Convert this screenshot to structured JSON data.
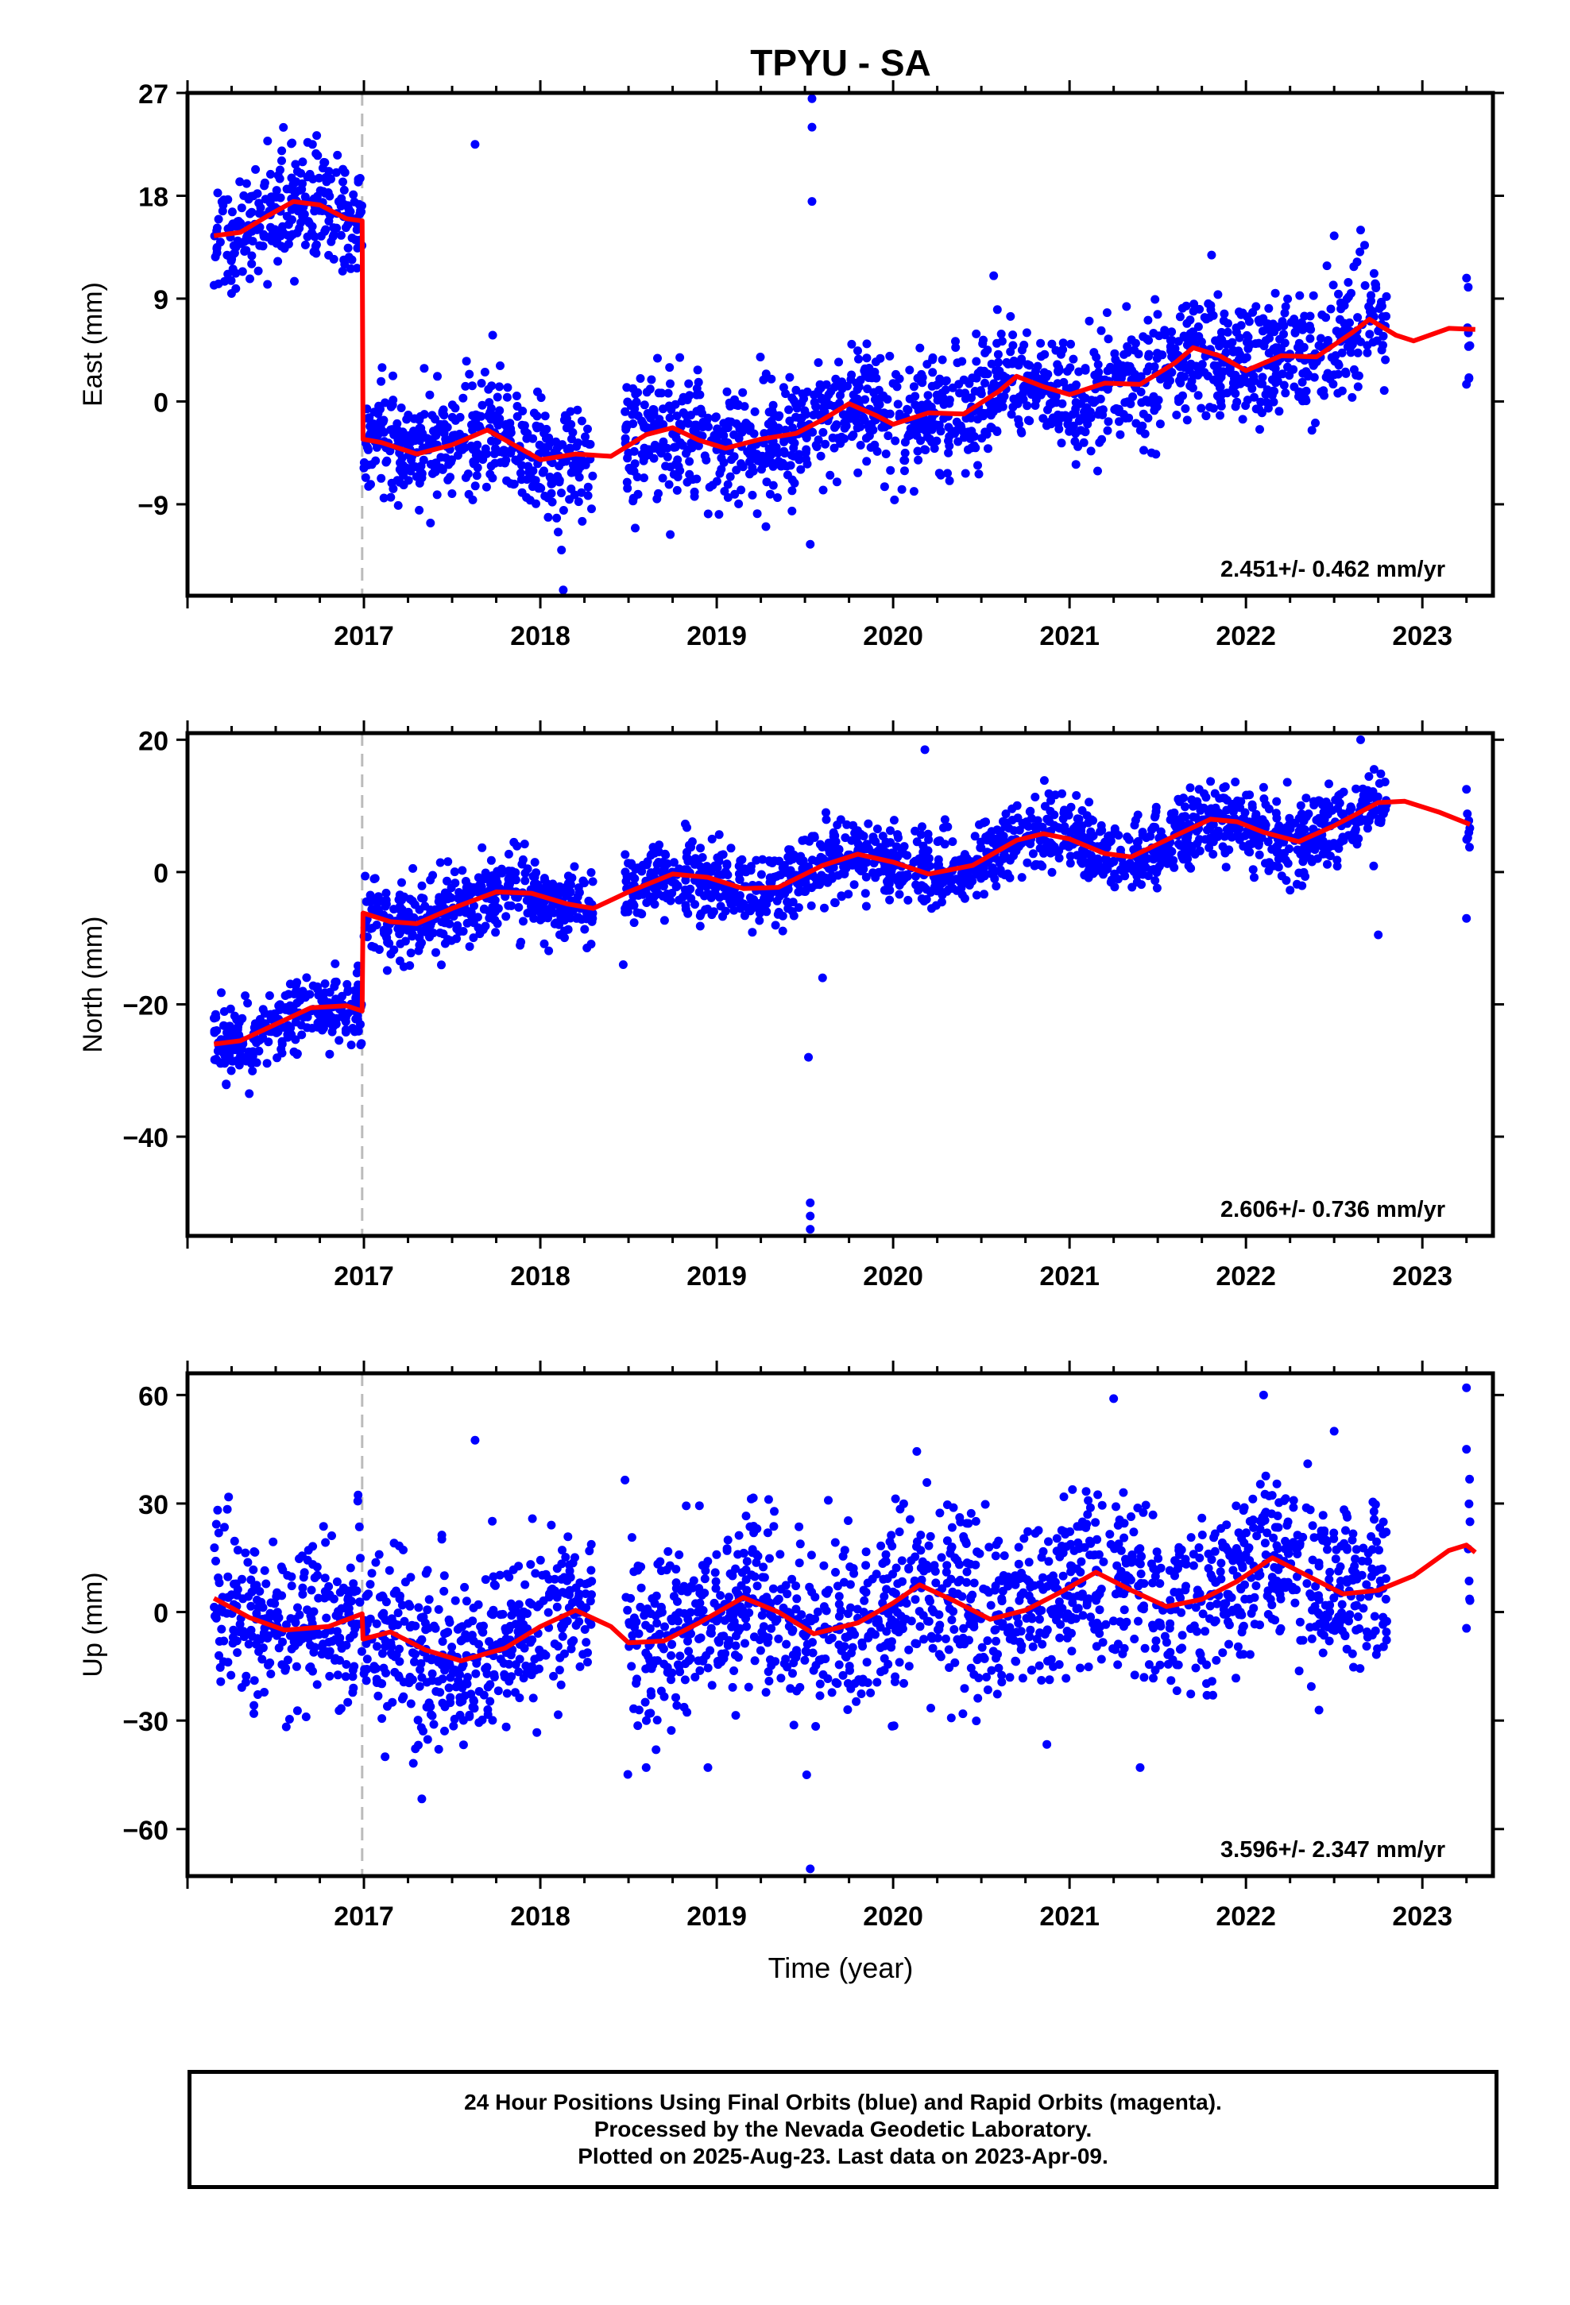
{
  "figure": {
    "title": "TPYU - SA",
    "xlabel": "Time (year)",
    "caption": [
      "24 Hour Positions Using Final Orbits (blue) and Rapid Orbits (magenta).",
      "Processed by the Nevada Geodetic Laboratory.",
      "Plotted on 2025-Aug-23. Last data on 2023-Apr-09."
    ],
    "colors": {
      "points": "#0000ff",
      "model": "#ff0000",
      "break_line": "#bbbbbb",
      "axes": "#000000"
    }
  },
  "chart_data": [
    {
      "type": "scatter",
      "panel": "east",
      "ylabel": "East (mm)",
      "xlim": [
        2016.0,
        2023.4
      ],
      "ylim": [
        -17,
        27
      ],
      "yticks": [
        27,
        18,
        9,
        0,
        -9
      ],
      "xticks": [
        2017,
        2018,
        2019,
        2020,
        2021,
        2022,
        2023
      ],
      "rate_label": "2.451+/- 0.462 mm/yr",
      "offset_epoch": 2016.99,
      "model_knots": [
        [
          2016.15,
          14.5
        ],
        [
          2016.3,
          14.8
        ],
        [
          2016.45,
          16.2
        ],
        [
          2016.6,
          17.5
        ],
        [
          2016.75,
          17.2
        ],
        [
          2016.9,
          16.0
        ],
        [
          2016.99,
          15.8
        ],
        [
          2016.995,
          -3.3
        ],
        [
          2017.1,
          -3.6
        ],
        [
          2017.3,
          -4.6
        ],
        [
          2017.5,
          -3.8
        ],
        [
          2017.7,
          -2.5
        ],
        [
          2017.85,
          -3.8
        ],
        [
          2018.0,
          -5.1
        ],
        [
          2018.2,
          -4.6
        ],
        [
          2018.4,
          -4.8
        ],
        [
          2018.6,
          -2.9
        ],
        [
          2018.75,
          -2.3
        ],
        [
          2018.9,
          -3.4
        ],
        [
          2019.05,
          -4.1
        ],
        [
          2019.25,
          -3.3
        ],
        [
          2019.45,
          -2.8
        ],
        [
          2019.6,
          -1.6
        ],
        [
          2019.75,
          -0.2
        ],
        [
          2019.9,
          -1.2
        ],
        [
          2020.0,
          -2.0
        ],
        [
          2020.2,
          -1.0
        ],
        [
          2020.4,
          -1.1
        ],
        [
          2020.6,
          0.9
        ],
        [
          2020.7,
          2.2
        ],
        [
          2020.85,
          1.3
        ],
        [
          2021.0,
          0.6
        ],
        [
          2021.2,
          1.6
        ],
        [
          2021.4,
          1.5
        ],
        [
          2021.6,
          3.4
        ],
        [
          2021.7,
          4.7
        ],
        [
          2021.85,
          4.0
        ],
        [
          2022.0,
          2.7
        ],
        [
          2022.2,
          4.0
        ],
        [
          2022.4,
          3.9
        ],
        [
          2022.6,
          6.0
        ],
        [
          2022.7,
          7.2
        ],
        [
          2022.85,
          5.8
        ],
        [
          2022.95,
          5.3
        ],
        [
          2023.15,
          6.4
        ],
        [
          2023.3,
          6.3
        ]
      ],
      "segments": [
        [
          2016.15,
          2016.99
        ],
        [
          2017.0,
          2018.3
        ],
        [
          2018.48,
          2019.75
        ],
        [
          2019.75,
          2020.45
        ],
        [
          2020.45,
          2022.8
        ],
        [
          2023.25,
          2023.27
        ]
      ],
      "noise_sd": 2.6,
      "outliers": [
        [
          2017.63,
          22.5
        ],
        [
          2019.54,
          26.5
        ],
        [
          2019.54,
          24.0
        ],
        [
          2019.54,
          17.5
        ],
        [
          2019.53,
          -12.5
        ],
        [
          2018.12,
          -13.0
        ],
        [
          2018.13,
          -16.5
        ],
        [
          2017.73,
          5.8
        ],
        [
          2020.57,
          11.0
        ],
        [
          2022.65,
          15.0
        ],
        [
          2022.5,
          14.5
        ],
        [
          2023.26,
          10.0
        ],
        [
          2023.25,
          1.5
        ]
      ]
    },
    {
      "type": "scatter",
      "panel": "north",
      "ylabel": "North (mm)",
      "xlim": [
        2016.0,
        2023.4
      ],
      "ylim": [
        -55,
        21
      ],
      "yticks": [
        20,
        0,
        -20,
        -40
      ],
      "xticks": [
        2017,
        2018,
        2019,
        2020,
        2021,
        2022,
        2023
      ],
      "rate_label": "2.606+/- 0.736 mm/yr",
      "offset_epoch": 2016.99,
      "model_knots": [
        [
          2016.15,
          -26.0
        ],
        [
          2016.3,
          -25.5
        ],
        [
          2016.5,
          -23.0
        ],
        [
          2016.7,
          -20.5
        ],
        [
          2016.9,
          -20.2
        ],
        [
          2016.99,
          -21.0
        ],
        [
          2016.995,
          -6.2
        ],
        [
          2017.15,
          -7.5
        ],
        [
          2017.3,
          -7.8
        ],
        [
          2017.5,
          -5.5
        ],
        [
          2017.75,
          -3.0
        ],
        [
          2017.95,
          -3.2
        ],
        [
          2018.15,
          -4.8
        ],
        [
          2018.3,
          -5.5
        ],
        [
          2018.5,
          -3.0
        ],
        [
          2018.75,
          -0.3
        ],
        [
          2018.95,
          -0.8
        ],
        [
          2019.15,
          -2.5
        ],
        [
          2019.35,
          -2.3
        ],
        [
          2019.6,
          1.0
        ],
        [
          2019.8,
          2.7
        ],
        [
          2020.0,
          1.5
        ],
        [
          2020.2,
          -0.3
        ],
        [
          2020.45,
          1.0
        ],
        [
          2020.7,
          4.8
        ],
        [
          2020.85,
          5.8
        ],
        [
          2021.0,
          5.0
        ],
        [
          2021.2,
          2.8
        ],
        [
          2021.35,
          2.3
        ],
        [
          2021.6,
          5.5
        ],
        [
          2021.8,
          8.0
        ],
        [
          2021.95,
          7.6
        ],
        [
          2022.1,
          6.0
        ],
        [
          2022.3,
          4.6
        ],
        [
          2022.5,
          7.0
        ],
        [
          2022.75,
          10.5
        ],
        [
          2022.9,
          10.7
        ],
        [
          2023.1,
          9.0
        ],
        [
          2023.27,
          7.2
        ]
      ],
      "segments": [
        [
          2016.15,
          2016.99
        ],
        [
          2017.0,
          2018.3
        ],
        [
          2018.48,
          2019.75
        ],
        [
          2019.75,
          2020.45
        ],
        [
          2020.45,
          2022.8
        ],
        [
          2023.25,
          2023.27
        ]
      ],
      "noise_sd": 2.8,
      "outliers": [
        [
          2019.52,
          -28.0
        ],
        [
          2019.53,
          -50.0
        ],
        [
          2019.53,
          -52.0
        ],
        [
          2019.53,
          -54.0
        ],
        [
          2018.47,
          -14.0
        ],
        [
          2016.35,
          -33.5
        ],
        [
          2022.65,
          20.0
        ],
        [
          2020.18,
          18.5
        ],
        [
          2022.75,
          -9.5
        ],
        [
          2023.25,
          12.5
        ],
        [
          2023.25,
          -7.0
        ],
        [
          2019.6,
          -16.0
        ],
        [
          2017.85,
          4.5
        ]
      ]
    },
    {
      "type": "scatter",
      "panel": "up",
      "ylabel": "Up (mm)",
      "xlim": [
        2016.0,
        2023.4
      ],
      "ylim": [
        -73,
        66
      ],
      "yticks": [
        60,
        30,
        0,
        -30,
        -60
      ],
      "xticks": [
        2017,
        2018,
        2019,
        2020,
        2021,
        2022,
        2023
      ],
      "rate_label": "3.596+/- 2.347 mm/yr",
      "offset_epoch": 2016.99,
      "model_knots": [
        [
          2016.15,
          3.8
        ],
        [
          2016.35,
          -1.5
        ],
        [
          2016.55,
          -5.0
        ],
        [
          2016.8,
          -4.0
        ],
        [
          2016.99,
          -0.5
        ],
        [
          2016.995,
          -7.5
        ],
        [
          2017.15,
          -5.5
        ],
        [
          2017.35,
          -10.5
        ],
        [
          2017.55,
          -13.5
        ],
        [
          2017.8,
          -10.0
        ],
        [
          2018.0,
          -4.0
        ],
        [
          2018.2,
          0.5
        ],
        [
          2018.4,
          -4.0
        ],
        [
          2018.5,
          -8.5
        ],
        [
          2018.7,
          -8.0
        ],
        [
          2018.9,
          -3.0
        ],
        [
          2019.15,
          4.0
        ],
        [
          2019.35,
          0.0
        ],
        [
          2019.55,
          -6.0
        ],
        [
          2019.8,
          -3.0
        ],
        [
          2020.0,
          2.5
        ],
        [
          2020.15,
          7.5
        ],
        [
          2020.35,
          3.0
        ],
        [
          2020.55,
          -2.0
        ],
        [
          2020.75,
          0.5
        ],
        [
          2020.95,
          5.5
        ],
        [
          2021.15,
          11.0
        ],
        [
          2021.35,
          6.0
        ],
        [
          2021.55,
          1.5
        ],
        [
          2021.75,
          3.5
        ],
        [
          2021.95,
          8.5
        ],
        [
          2022.15,
          15.0
        ],
        [
          2022.35,
          10.0
        ],
        [
          2022.55,
          5.0
        ],
        [
          2022.75,
          6.0
        ],
        [
          2022.95,
          10.0
        ],
        [
          2023.15,
          17.0
        ],
        [
          2023.25,
          18.5
        ],
        [
          2023.3,
          16.5
        ]
      ],
      "segments": [
        [
          2016.15,
          2016.99
        ],
        [
          2017.0,
          2018.3
        ],
        [
          2018.48,
          2019.75
        ],
        [
          2019.75,
          2020.45
        ],
        [
          2020.45,
          2022.8
        ],
        [
          2023.25,
          2023.27
        ]
      ],
      "noise_sd": 12.0,
      "outliers": [
        [
          2017.63,
          47.5
        ],
        [
          2019.53,
          -71.0
        ],
        [
          2019.51,
          -45.0
        ],
        [
          2017.12,
          -40.0
        ],
        [
          2021.4,
          -43.0
        ],
        [
          2021.25,
          59.0
        ],
        [
          2022.1,
          60.0
        ],
        [
          2023.25,
          62.0
        ],
        [
          2023.25,
          45.0
        ],
        [
          2023.25,
          -4.5
        ],
        [
          2018.48,
          36.5
        ],
        [
          2018.6,
          -43.0
        ],
        [
          2018.95,
          -43.0
        ],
        [
          2022.35,
          41.0
        ],
        [
          2022.5,
          50.0
        ]
      ]
    }
  ]
}
